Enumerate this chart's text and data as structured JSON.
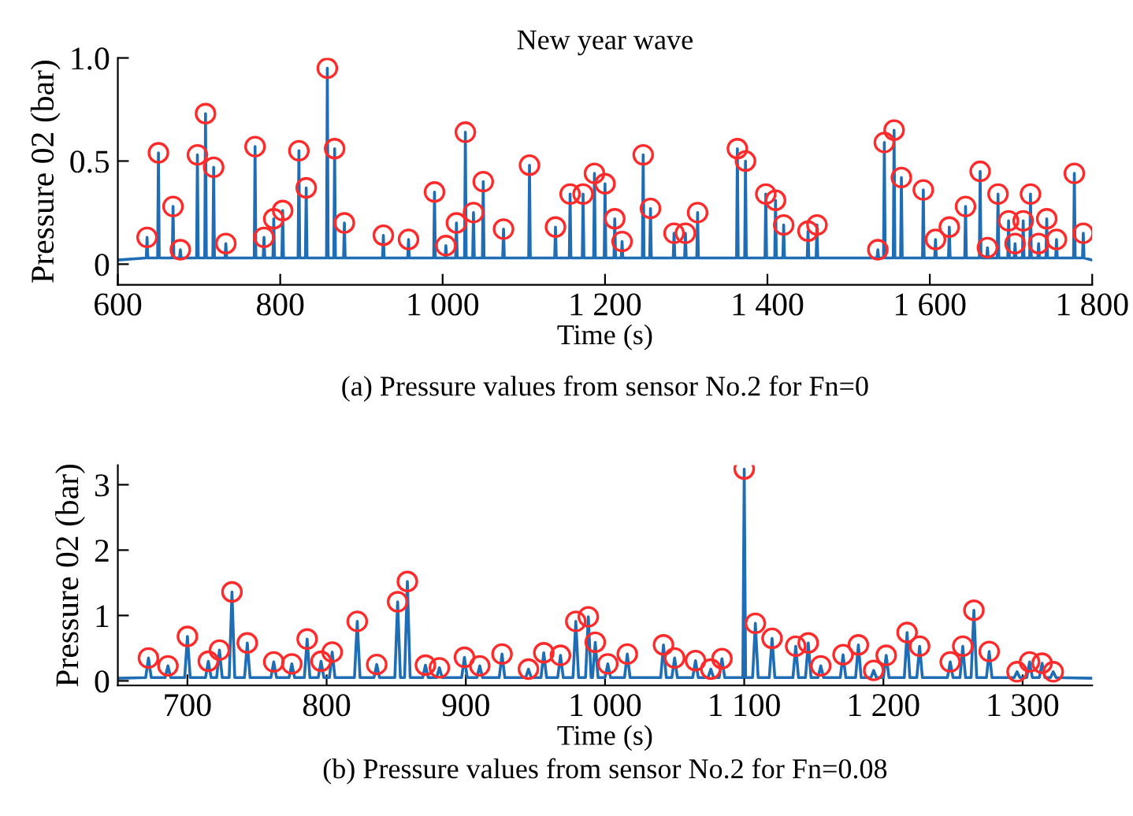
{
  "chart_data": [
    {
      "type": "line",
      "title": "New year wave",
      "xlabel": "Time (s)",
      "ylabel": "Pressure 02 (bar)",
      "annotations": [
        "(a) Pressure values from sensor No.2 for Fn=0"
      ],
      "xlim": [
        600,
        1800
      ],
      "xticks": [
        600,
        800,
        {
          "value": 1000,
          "label": "1 000"
        },
        {
          "value": 1200,
          "label": "1 200"
        },
        {
          "value": 1400,
          "label": "1 400"
        },
        {
          "value": 1600,
          "label": "1 600"
        },
        {
          "value": 1800,
          "label": "1 800"
        }
      ],
      "ylim": [
        -0.1,
        1.0
      ],
      "yticks": [
        0,
        0.5,
        {
          "value": 1.0,
          "label": "1.0"
        }
      ],
      "grid": false,
      "legend": false,
      "series": [
        {
          "color": "#1f6db4",
          "marker": "none",
          "x": [
            600,
            635,
            636,
            637,
            649,
            650,
            651,
            667,
            668,
            669,
            676,
            677,
            678,
            697,
            698,
            699,
            707,
            708,
            709,
            717,
            718,
            719,
            732,
            733,
            734,
            768,
            769,
            770,
            779,
            780,
            781,
            791,
            792,
            793,
            802,
            803,
            804,
            822,
            823,
            824,
            831,
            832,
            833,
            857,
            858,
            859,
            866,
            867,
            868,
            878,
            879,
            880,
            926,
            927,
            928,
            957,
            958,
            959,
            989,
            990,
            991,
            1003,
            1004,
            1005,
            1016,
            1017,
            1018,
            1027,
            1028,
            1029,
            1037,
            1038,
            1039,
            1049,
            1050,
            1051,
            1074,
            1075,
            1076,
            1106,
            1107,
            1108,
            1138,
            1139,
            1140,
            1156,
            1157,
            1158,
            1172,
            1173,
            1174,
            1186,
            1187,
            1188,
            1199,
            1200,
            1201,
            1211,
            1212,
            1213,
            1220,
            1221,
            1222,
            1246,
            1247,
            1248,
            1255,
            1256,
            1257,
            1284,
            1285,
            1286,
            1298,
            1299,
            1300,
            1313,
            1314,
            1315,
            1362,
            1363,
            1364,
            1372,
            1373,
            1374,
            1397,
            1398,
            1399,
            1409,
            1410,
            1411,
            1419,
            1420,
            1421,
            1449,
            1450,
            1451,
            1460,
            1461,
            1462,
            1535,
            1536,
            1537,
            1543,
            1544,
            1545,
            1555,
            1556,
            1557,
            1564,
            1565,
            1566,
            1591,
            1592,
            1593,
            1606,
            1607,
            1608,
            1623,
            1624,
            1625,
            1643,
            1644,
            1645,
            1661,
            1662,
            1663,
            1670,
            1671,
            1672,
            1683,
            1684,
            1685,
            1696,
            1697,
            1698,
            1704,
            1705,
            1706,
            1714,
            1715,
            1716,
            1723,
            1724,
            1725,
            1733,
            1734,
            1735,
            1743,
            1744,
            1745,
            1755,
            1756,
            1757,
            1777,
            1778,
            1779,
            1788,
            1789,
            1790,
            1800
          ],
          "values": [
            0.02,
            0.03,
            0.13,
            0.03,
            0.03,
            0.54,
            0.03,
            0.03,
            0.28,
            0.03,
            0.03,
            0.07,
            0.03,
            0.03,
            0.53,
            0.03,
            0.03,
            0.73,
            0.03,
            0.03,
            0.47,
            0.03,
            0.03,
            0.1,
            0.03,
            0.03,
            0.57,
            0.03,
            0.03,
            0.13,
            0.03,
            0.03,
            0.22,
            0.03,
            0.03,
            0.26,
            0.03,
            0.03,
            0.55,
            0.03,
            0.03,
            0.37,
            0.03,
            0.03,
            0.95,
            0.03,
            0.03,
            0.56,
            0.03,
            0.03,
            0.2,
            0.03,
            0.03,
            0.14,
            0.03,
            0.03,
            0.12,
            0.03,
            0.03,
            0.35,
            0.03,
            0.03,
            0.09,
            0.03,
            0.03,
            0.2,
            0.03,
            0.03,
            0.64,
            0.03,
            0.03,
            0.25,
            0.03,
            0.03,
            0.4,
            0.03,
            0.03,
            0.17,
            0.03,
            0.03,
            0.48,
            0.03,
            0.03,
            0.18,
            0.03,
            0.03,
            0.34,
            0.03,
            0.03,
            0.34,
            0.03,
            0.03,
            0.44,
            0.03,
            0.03,
            0.39,
            0.03,
            0.03,
            0.22,
            0.03,
            0.03,
            0.11,
            0.03,
            0.03,
            0.53,
            0.03,
            0.03,
            0.27,
            0.03,
            0.03,
            0.15,
            0.03,
            0.03,
            0.15,
            0.03,
            0.03,
            0.25,
            0.03,
            0.03,
            0.56,
            0.03,
            0.03,
            0.5,
            0.03,
            0.03,
            0.34,
            0.03,
            0.03,
            0.31,
            0.03,
            0.03,
            0.19,
            0.03,
            0.03,
            0.16,
            0.03,
            0.03,
            0.19,
            0.03,
            0.03,
            0.07,
            0.03,
            0.03,
            0.59,
            0.03,
            0.03,
            0.65,
            0.03,
            0.03,
            0.42,
            0.03,
            0.03,
            0.36,
            0.03,
            0.03,
            0.12,
            0.03,
            0.03,
            0.18,
            0.03,
            0.03,
            0.28,
            0.03,
            0.03,
            0.45,
            0.03,
            0.03,
            0.08,
            0.03,
            0.03,
            0.34,
            0.03,
            0.03,
            0.21,
            0.03,
            0.03,
            0.1,
            0.03,
            0.03,
            0.21,
            0.03,
            0.03,
            0.34,
            0.03,
            0.03,
            0.1,
            0.03,
            0.03,
            0.22,
            0.03,
            0.03,
            0.12,
            0.03,
            0.03,
            0.44,
            0.03,
            0.03,
            0.15,
            0.03,
            0.02
          ]
        },
        {
          "type": "scatter",
          "color": "#ff2a2a",
          "marker": "circle",
          "x": [
            636,
            650,
            668,
            677,
            698,
            708,
            718,
            733,
            769,
            780,
            792,
            803,
            823,
            832,
            858,
            867,
            879,
            927,
            958,
            990,
            1004,
            1017,
            1028,
            1038,
            1050,
            1075,
            1107,
            1139,
            1157,
            1173,
            1187,
            1200,
            1212,
            1221,
            1247,
            1256,
            1285,
            1299,
            1314,
            1363,
            1373,
            1398,
            1410,
            1420,
            1450,
            1461,
            1536,
            1544,
            1556,
            1565,
            1592,
            1607,
            1624,
            1644,
            1662,
            1671,
            1684,
            1697,
            1705,
            1715,
            1724,
            1734,
            1744,
            1756,
            1778,
            1789
          ],
          "values": [
            0.13,
            0.54,
            0.28,
            0.07,
            0.53,
            0.73,
            0.47,
            0.1,
            0.57,
            0.13,
            0.22,
            0.26,
            0.55,
            0.37,
            0.95,
            0.56,
            0.2,
            0.14,
            0.12,
            0.35,
            0.09,
            0.2,
            0.64,
            0.25,
            0.4,
            0.17,
            0.48,
            0.18,
            0.34,
            0.34,
            0.44,
            0.39,
            0.22,
            0.11,
            0.53,
            0.27,
            0.15,
            0.15,
            0.25,
            0.56,
            0.5,
            0.34,
            0.31,
            0.19,
            0.16,
            0.19,
            0.07,
            0.59,
            0.65,
            0.42,
            0.36,
            0.12,
            0.18,
            0.28,
            0.45,
            0.08,
            0.34,
            0.21,
            0.1,
            0.21,
            0.34,
            0.1,
            0.22,
            0.12,
            0.44,
            0.15
          ]
        }
      ]
    },
    {
      "type": "line",
      "xlabel": "Time (s)",
      "ylabel": "Pressure 02 (bar)",
      "annotations": [
        "(b) Pressure values from sensor No.2 for Fn=0.08"
      ],
      "xlim": [
        650,
        1350
      ],
      "xticks": [
        700,
        800,
        900,
        {
          "value": 1000,
          "label": "1 000"
        },
        {
          "value": 1100,
          "label": "1 100"
        },
        {
          "value": 1200,
          "label": "1 200"
        },
        {
          "value": 1300,
          "label": "1 300"
        }
      ],
      "ylim": [
        -0.07,
        3.3
      ],
      "yticks": [
        0,
        1,
        2,
        3
      ],
      "grid": false,
      "legend": false,
      "series": [
        {
          "color": "#1f6db4",
          "marker": "none",
          "x": [
            650,
            670,
            672,
            674,
            684,
            686,
            688,
            698,
            700,
            702,
            713,
            715,
            717,
            721,
            723,
            725,
            730,
            732,
            734,
            741,
            743,
            745,
            760,
            762,
            764,
            773,
            775,
            777,
            784,
            786,
            788,
            794,
            796,
            798,
            802,
            804,
            806,
            820,
            822,
            824,
            834,
            836,
            838,
            849,
            851,
            853,
            856,
            858,
            860,
            869,
            871,
            873,
            879,
            881,
            883,
            897,
            899,
            901,
            908,
            910,
            912,
            924,
            926,
            928,
            943,
            945,
            947,
            954,
            956,
            958,
            966,
            968,
            970,
            977,
            979,
            981,
            986,
            988,
            990,
            991,
            993,
            995,
            1000,
            1002,
            1004,
            1014,
            1016,
            1018,
            1040,
            1042,
            1044,
            1048,
            1050,
            1052,
            1063,
            1065,
            1067,
            1074,
            1076,
            1078,
            1082,
            1084,
            1086,
            1099,
            1100,
            1101,
            1106,
            1108,
            1110,
            1118,
            1120,
            1122,
            1135,
            1137,
            1139,
            1144,
            1146,
            1148,
            1153,
            1155,
            1157,
            1169,
            1171,
            1173,
            1180,
            1182,
            1184,
            1191,
            1193,
            1195,
            1200,
            1202,
            1204,
            1215,
            1217,
            1219,
            1224,
            1226,
            1228,
            1246,
            1248,
            1250,
            1255,
            1257,
            1259,
            1263,
            1265,
            1267,
            1274,
            1276,
            1278,
            1294,
            1296,
            1298,
            1303,
            1305,
            1307,
            1312,
            1314,
            1316,
            1320,
            1322,
            1324,
            1350
          ],
          "values": [
            0.04,
            0.05,
            0.35,
            0.05,
            0.05,
            0.23,
            0.05,
            0.05,
            0.68,
            0.05,
            0.05,
            0.3,
            0.05,
            0.05,
            0.47,
            0.05,
            0.05,
            1.36,
            0.05,
            0.05,
            0.58,
            0.05,
            0.05,
            0.29,
            0.05,
            0.05,
            0.26,
            0.05,
            0.05,
            0.64,
            0.05,
            0.05,
            0.3,
            0.05,
            0.05,
            0.44,
            0.05,
            0.05,
            0.91,
            0.05,
            0.05,
            0.25,
            0.05,
            0.05,
            1.21,
            0.05,
            0.05,
            1.52,
            0.05,
            0.05,
            0.24,
            0.05,
            0.05,
            0.2,
            0.05,
            0.05,
            0.36,
            0.05,
            0.05,
            0.23,
            0.05,
            0.05,
            0.41,
            0.05,
            0.05,
            0.18,
            0.05,
            0.05,
            0.43,
            0.05,
            0.05,
            0.39,
            0.05,
            0.05,
            0.91,
            0.05,
            0.05,
            0.98,
            0.05,
            0.05,
            0.59,
            0.05,
            0.05,
            0.26,
            0.05,
            0.05,
            0.41,
            0.05,
            0.05,
            0.55,
            0.05,
            0.05,
            0.35,
            0.05,
            0.05,
            0.31,
            0.05,
            0.05,
            0.18,
            0.05,
            0.05,
            0.34,
            0.05,
            0.05,
            3.24,
            0.05,
            0.05,
            0.88,
            0.05,
            0.05,
            0.65,
            0.05,
            0.05,
            0.53,
            0.05,
            0.05,
            0.58,
            0.05,
            0.05,
            0.23,
            0.05,
            0.05,
            0.4,
            0.05,
            0.05,
            0.55,
            0.05,
            0.05,
            0.16,
            0.05,
            0.05,
            0.39,
            0.05,
            0.05,
            0.74,
            0.05,
            0.05,
            0.53,
            0.05,
            0.05,
            0.29,
            0.05,
            0.05,
            0.53,
            0.05,
            0.05,
            1.08,
            0.05,
            0.05,
            0.45,
            0.05,
            0.05,
            0.14,
            0.05,
            0.05,
            0.29,
            0.05,
            0.05,
            0.27,
            0.05,
            0.05,
            0.14,
            0.05,
            0.04
          ]
        },
        {
          "type": "scatter",
          "color": "#ff2a2a",
          "marker": "circle",
          "x": [
            672,
            686,
            700,
            715,
            723,
            732,
            743,
            762,
            775,
            786,
            796,
            804,
            822,
            836,
            851,
            858,
            871,
            881,
            899,
            910,
            926,
            945,
            956,
            968,
            979,
            988,
            993,
            1002,
            1016,
            1042,
            1050,
            1065,
            1076,
            1084,
            1100,
            1108,
            1120,
            1137,
            1146,
            1155,
            1171,
            1182,
            1193,
            1202,
            1217,
            1226,
            1248,
            1257,
            1265,
            1276,
            1296,
            1305,
            1314,
            1322
          ],
          "values": [
            0.35,
            0.23,
            0.68,
            0.3,
            0.47,
            1.36,
            0.58,
            0.29,
            0.26,
            0.64,
            0.3,
            0.44,
            0.91,
            0.25,
            1.21,
            1.52,
            0.24,
            0.2,
            0.36,
            0.23,
            0.41,
            0.18,
            0.43,
            0.39,
            0.91,
            0.98,
            0.59,
            0.26,
            0.41,
            0.55,
            0.35,
            0.31,
            0.18,
            0.34,
            3.24,
            0.88,
            0.65,
            0.53,
            0.58,
            0.23,
            0.4,
            0.55,
            0.16,
            0.39,
            0.74,
            0.53,
            0.29,
            0.53,
            1.08,
            0.45,
            0.14,
            0.29,
            0.27,
            0.14
          ]
        }
      ]
    }
  ]
}
